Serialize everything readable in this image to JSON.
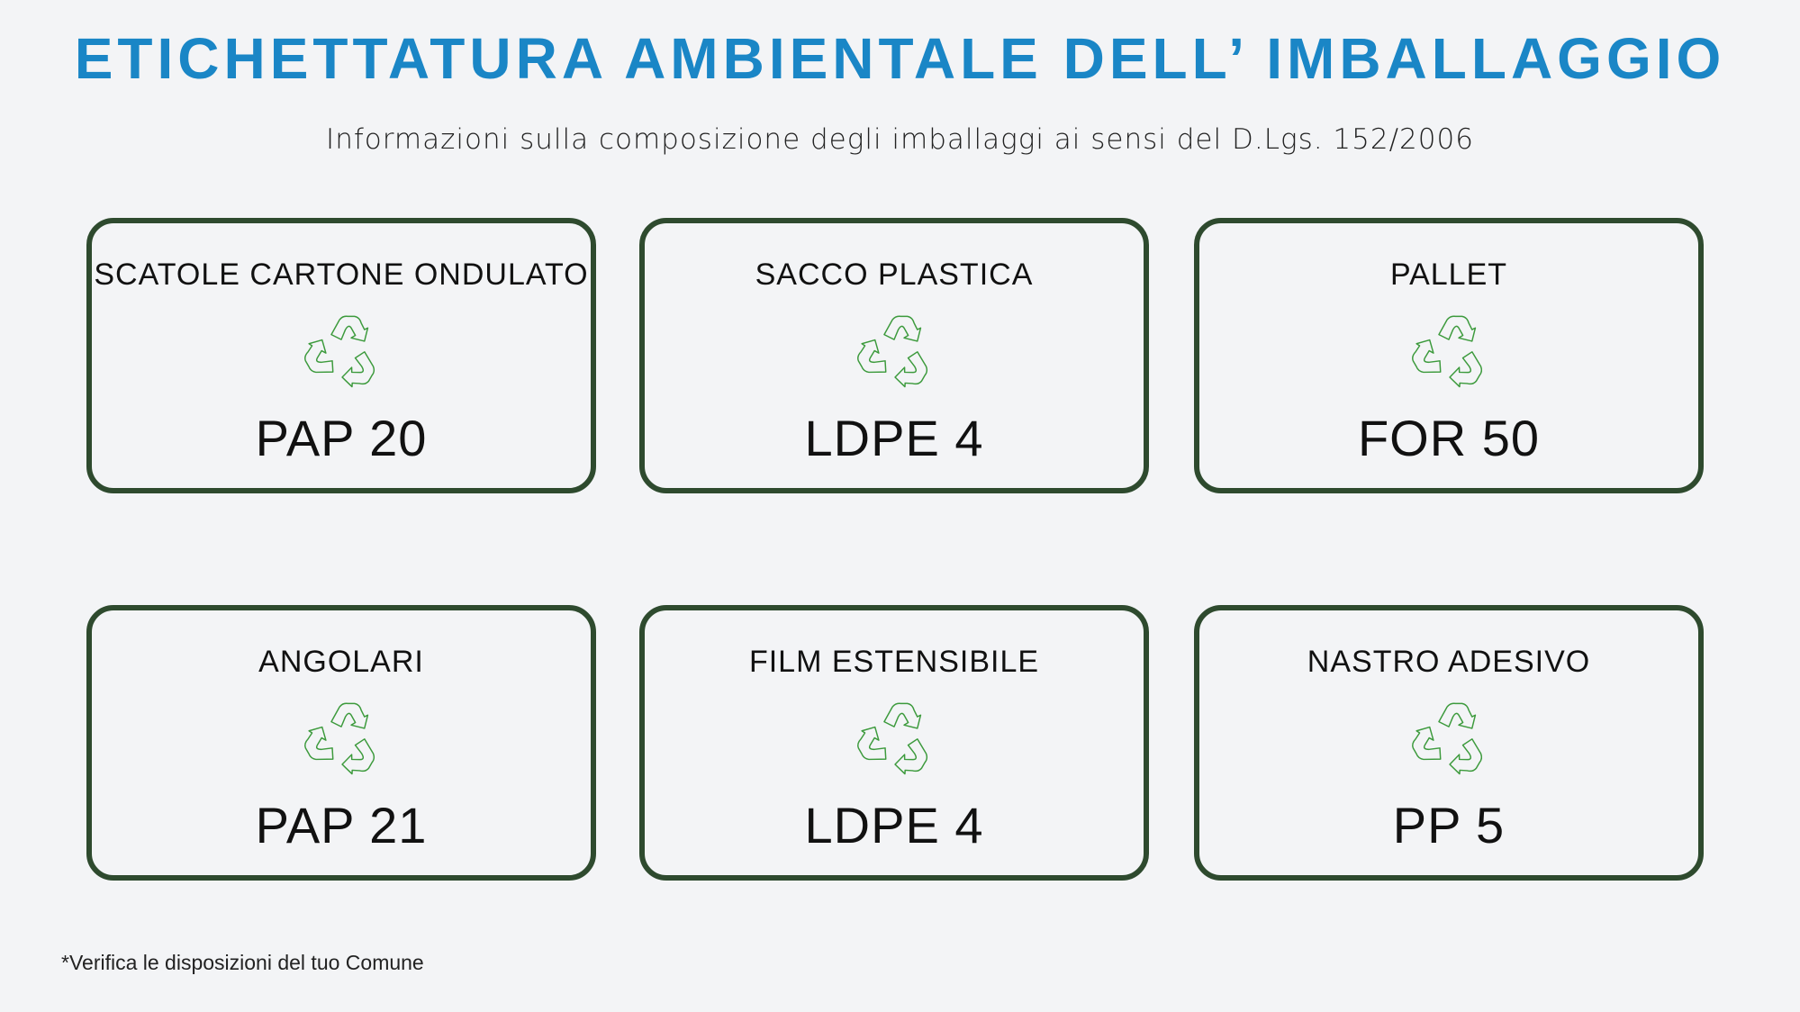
{
  "header": {
    "title": "ETICHETTATURA AMBIENTALE DELL’ IMBALLAGGIO",
    "subtitle": "Informazioni sulla composizione degli imballaggi ai sensi del D.Lgs. 152/2006"
  },
  "colors": {
    "title": "#1a86c6",
    "card_border": "#2e4a2e",
    "icon": "#3c9a3c"
  },
  "cards": [
    {
      "label": "SCATOLE CARTONE ONDULATO",
      "code": "PAP 20",
      "icon": "recycle-icon"
    },
    {
      "label": "SACCO PLASTICA",
      "code": "LDPE 4",
      "icon": "recycle-icon"
    },
    {
      "label": "PALLET",
      "code": "FOR 50",
      "icon": "recycle-icon"
    },
    {
      "label": "ANGOLARI",
      "code": "PAP 21",
      "icon": "recycle-icon"
    },
    {
      "label": "FILM ESTENSIBILE",
      "code": "LDPE 4",
      "icon": "recycle-icon"
    },
    {
      "label": "NASTRO ADESIVO",
      "code": "PP 5",
      "icon": "recycle-icon"
    }
  ],
  "footer": {
    "note": "*Verifica le disposizioni del tuo Comune"
  }
}
